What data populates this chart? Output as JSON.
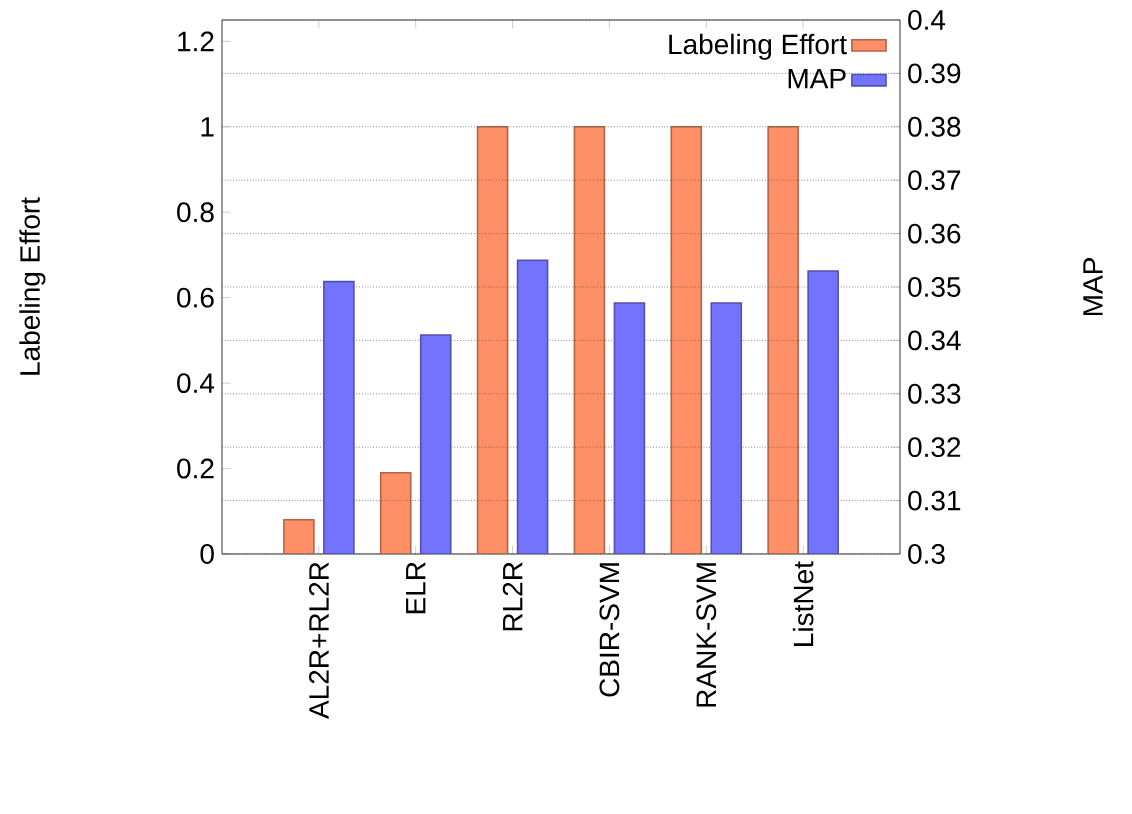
{
  "chart_data": {
    "type": "bar",
    "ylabel": "Labeling Effort",
    "y2label": "MAP",
    "categories": [
      "AL2R+RL2R",
      "ELR",
      "RL2R",
      "CBIR-SVM",
      "RANK-SVM",
      "ListNet"
    ],
    "series": [
      {
        "name": "Labeling Effort",
        "color": "#ff8f66",
        "values": [
          0.08,
          0.19,
          1,
          1,
          1,
          1
        ]
      },
      {
        "name": "MAP",
        "color": "#7373ff",
        "axis": "y2",
        "values": [
          0.351,
          0.341,
          0.355,
          0.347,
          0.347,
          0.353
        ]
      }
    ],
    "ylim": [
      0,
      1.25
    ],
    "yticks": [
      0,
      0.2,
      0.4,
      0.6,
      0.8,
      1,
      1.2
    ],
    "y2lim": [
      0.3,
      0.4
    ],
    "y2ticks": [
      0.3,
      0.31,
      0.32,
      0.33,
      0.34,
      0.35,
      0.36,
      0.37,
      0.38,
      0.39,
      0.4
    ],
    "grid": "y2",
    "legend": "top right"
  }
}
